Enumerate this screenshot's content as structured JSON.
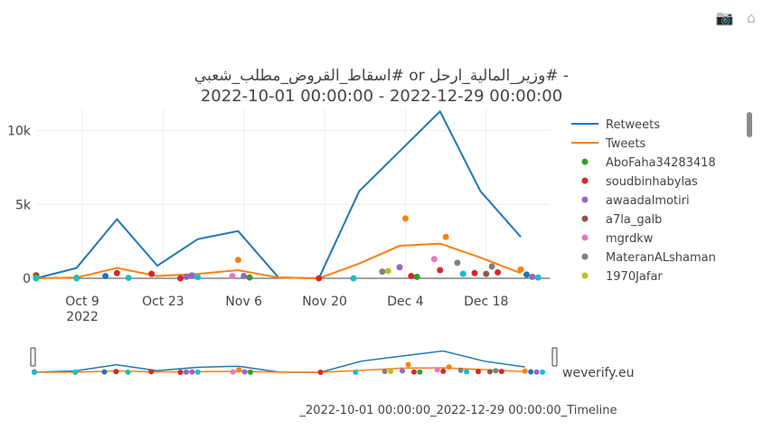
{
  "toolbar": {
    "camera_icon": "camera-icon",
    "home_icon": "home-icon"
  },
  "chart": {
    "title_line1": "اسقاط_القروض_مطلب_شعبي# or وزير_المالية_ارحل# -",
    "title_line2": "2022-10-01 00:00:00 - 2022-12-29 00:00:00",
    "x_ticks": [
      {
        "date": "2022-10-09",
        "label": "Oct 9",
        "sublabel": "2022"
      },
      {
        "date": "2022-10-23",
        "label": "Oct 23"
      },
      {
        "date": "2022-11-06",
        "label": "Nov 6"
      },
      {
        "date": "2022-11-20",
        "label": "Nov 20"
      },
      {
        "date": "2022-12-04",
        "label": "Dec 4"
      },
      {
        "date": "2022-12-18",
        "label": "Dec 18"
      }
    ],
    "y_ticks": [
      {
        "value": 0,
        "label": "0"
      },
      {
        "value": 5000,
        "label": "5k"
      },
      {
        "value": 10000,
        "label": "10k"
      }
    ],
    "legend": [
      {
        "name": "Retweets",
        "color": "#1f77b4",
        "kind": "line"
      },
      {
        "name": "Tweets",
        "color": "#ff7f0e",
        "kind": "line"
      },
      {
        "name": "AboFaha34283418",
        "color": "#2ca02c",
        "kind": "dot"
      },
      {
        "name": "soudbinhabylas",
        "color": "#d62728",
        "kind": "dot"
      },
      {
        "name": "awaadalmotiri",
        "color": "#9467bd",
        "kind": "dot"
      },
      {
        "name": "a7la_galb",
        "color": "#8c564b",
        "kind": "dot"
      },
      {
        "name": "mgrdkw",
        "color": "#e377c2",
        "kind": "dot"
      },
      {
        "name": "MateranALshaman",
        "color": "#7f7f7f",
        "kind": "dot"
      },
      {
        "name": "1970Jafar",
        "color": "#bcbd22",
        "kind": "dot"
      }
    ],
    "brand": "weverify.eu",
    "caption": "_2022-10-01 00:00:00_2022-12-29 00:00:00_Timeline"
  },
  "chart_data": {
    "type": "line",
    "xlim": [
      "2022-10-01",
      "2022-12-29"
    ],
    "ylim": [
      0,
      11500
    ],
    "series": [
      {
        "name": "Retweets",
        "color": "#1f77b4",
        "x": [
          "2022-10-01",
          "2022-10-08",
          "2022-10-15",
          "2022-10-22",
          "2022-10-29",
          "2022-11-05",
          "2022-11-12",
          "2022-11-19",
          "2022-11-26",
          "2022-12-03",
          "2022-12-10",
          "2022-12-17",
          "2022-12-24"
        ],
        "y": [
          0,
          700,
          4000,
          850,
          2650,
          3200,
          50,
          0,
          5900,
          8600,
          11300,
          5900,
          2800
        ]
      },
      {
        "name": "Tweets",
        "color": "#ff7f0e",
        "x": [
          "2022-10-01",
          "2022-10-08",
          "2022-10-15",
          "2022-10-22",
          "2022-10-29",
          "2022-11-05",
          "2022-11-12",
          "2022-11-19",
          "2022-11-26",
          "2022-12-03",
          "2022-12-10",
          "2022-12-17",
          "2022-12-24"
        ],
        "y": [
          0,
          50,
          700,
          150,
          300,
          550,
          50,
          0,
          1000,
          2200,
          2350,
          1400,
          350
        ]
      }
    ],
    "points": [
      {
        "x": "2022-10-01",
        "y": 200,
        "c": "#d62728"
      },
      {
        "x": "2022-10-01",
        "y": 50,
        "c": "#2ca02c"
      },
      {
        "x": "2022-10-01",
        "y": 0,
        "c": "#17becf"
      },
      {
        "x": "2022-10-08",
        "y": 50,
        "c": "#bcbd22"
      },
      {
        "x": "2022-10-08",
        "y": 0,
        "c": "#17becf"
      },
      {
        "x": "2022-10-13",
        "y": 150,
        "c": "#1f77b4"
      },
      {
        "x": "2022-10-15",
        "y": 350,
        "c": "#d62728"
      },
      {
        "x": "2022-10-17",
        "y": 30,
        "c": "#17becf"
      },
      {
        "x": "2022-10-21",
        "y": 300,
        "c": "#d62728"
      },
      {
        "x": "2022-10-26",
        "y": 0,
        "c": "#d62728"
      },
      {
        "x": "2022-10-27",
        "y": 100,
        "c": "#9467bd"
      },
      {
        "x": "2022-10-28",
        "y": 200,
        "c": "#9467bd"
      },
      {
        "x": "2022-10-29",
        "y": 80,
        "c": "#17becf"
      },
      {
        "x": "2022-11-04",
        "y": 150,
        "c": "#e377c2"
      },
      {
        "x": "2022-11-05",
        "y": 1250,
        "c": "#ff7f0e"
      },
      {
        "x": "2022-11-06",
        "y": 150,
        "c": "#9467bd"
      },
      {
        "x": "2022-11-07",
        "y": 50,
        "c": "#2ca02c"
      },
      {
        "x": "2022-11-19",
        "y": 0,
        "c": "#d62728"
      },
      {
        "x": "2022-11-25",
        "y": 0,
        "c": "#17becf"
      },
      {
        "x": "2022-11-30",
        "y": 450,
        "c": "#7f7f7f"
      },
      {
        "x": "2022-12-01",
        "y": 500,
        "c": "#bcbd22"
      },
      {
        "x": "2022-12-03",
        "y": 750,
        "c": "#9467bd"
      },
      {
        "x": "2022-12-04",
        "y": 4050,
        "c": "#ff7f0e"
      },
      {
        "x": "2022-12-05",
        "y": 150,
        "c": "#d62728"
      },
      {
        "x": "2022-12-06",
        "y": 100,
        "c": "#2ca02c"
      },
      {
        "x": "2022-12-09",
        "y": 1300,
        "c": "#e377c2"
      },
      {
        "x": "2022-12-10",
        "y": 550,
        "c": "#d62728"
      },
      {
        "x": "2022-12-11",
        "y": 2800,
        "c": "#ff7f0e"
      },
      {
        "x": "2022-12-13",
        "y": 1050,
        "c": "#7f7f7f"
      },
      {
        "x": "2022-12-14",
        "y": 300,
        "c": "#17becf"
      },
      {
        "x": "2022-12-16",
        "y": 350,
        "c": "#d62728"
      },
      {
        "x": "2022-12-18",
        "y": 300,
        "c": "#8c564b"
      },
      {
        "x": "2022-12-19",
        "y": 800,
        "c": "#7f7f7f"
      },
      {
        "x": "2022-12-20",
        "y": 400,
        "c": "#d62728"
      },
      {
        "x": "2022-12-24",
        "y": 600,
        "c": "#ff7f0e"
      },
      {
        "x": "2022-12-25",
        "y": 250,
        "c": "#1f77b4"
      },
      {
        "x": "2022-12-26",
        "y": 100,
        "c": "#9467bd"
      },
      {
        "x": "2022-12-27",
        "y": 50,
        "c": "#17becf"
      }
    ]
  }
}
